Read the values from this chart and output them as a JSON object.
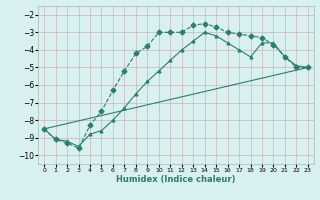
{
  "line1_x": [
    0,
    1,
    2,
    3,
    4,
    5,
    6,
    7,
    8,
    9,
    10,
    11,
    12,
    13,
    14,
    15,
    16,
    17,
    18,
    19,
    20,
    21,
    22,
    23
  ],
  "line1_y": [
    -8.5,
    -9.1,
    -9.3,
    -9.6,
    -8.3,
    -7.5,
    -6.3,
    -5.2,
    -4.2,
    -3.8,
    -3.0,
    -3.0,
    -3.0,
    -2.6,
    -2.5,
    -2.7,
    -3.0,
    -3.1,
    -3.2,
    -3.3,
    -3.7,
    -4.4,
    -5.0,
    -5.0
  ],
  "line2_x": [
    0,
    1,
    2,
    3,
    4,
    5,
    6,
    7,
    8,
    9,
    10,
    11,
    12,
    13,
    14,
    15,
    16,
    17,
    18,
    19,
    20,
    21,
    22,
    23
  ],
  "line2_y": [
    -8.5,
    -9.1,
    -9.2,
    -9.5,
    -8.8,
    -8.6,
    -8.0,
    -7.3,
    -6.5,
    -5.8,
    -5.2,
    -4.6,
    -4.0,
    -3.5,
    -3.0,
    -3.2,
    -3.6,
    -4.0,
    -4.4,
    -3.6,
    -3.6,
    -4.4,
    -4.9,
    -5.0
  ],
  "line3_x": [
    0,
    23
  ],
  "line3_y": [
    -8.5,
    -5.0
  ],
  "color": "#2e7d6e",
  "bg_color": "#d8f0f0",
  "xlabel": "Humidex (Indice chaleur)",
  "ylim": [
    -10.5,
    -1.5
  ],
  "xlim": [
    -0.5,
    23.5
  ],
  "yticks": [
    -2,
    -3,
    -4,
    -5,
    -6,
    -7,
    -8,
    -9,
    -10
  ],
  "xticks": [
    0,
    1,
    2,
    3,
    4,
    5,
    6,
    7,
    8,
    9,
    10,
    11,
    12,
    13,
    14,
    15,
    16,
    17,
    18,
    19,
    20,
    21,
    22,
    23
  ]
}
